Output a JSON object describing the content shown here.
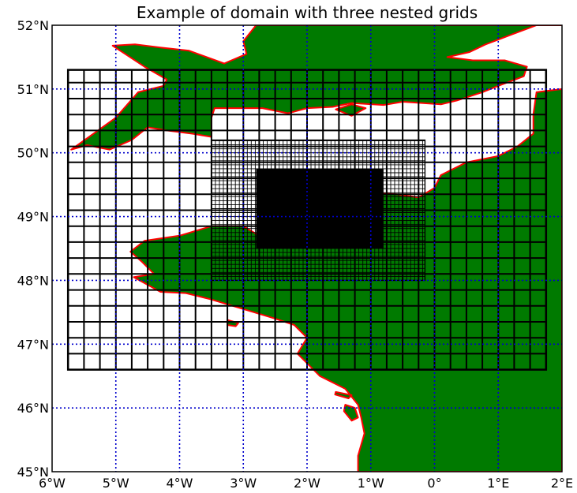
{
  "map": {
    "title": "Example of domain with three nested grids",
    "projection": "equirectangular",
    "extent": {
      "lon": [
        -6,
        2
      ],
      "lat": [
        45,
        52
      ]
    },
    "colors": {
      "land": "#007a00",
      "coastline": "#ff0000",
      "ocean": "#ffffff",
      "graticule": "#0000cc",
      "grid_lines": "#000000"
    },
    "graticule": {
      "lons": [
        -5,
        -4,
        -3,
        -2,
        -1,
        0,
        1
      ],
      "lats": [
        46,
        47,
        48,
        49,
        50,
        51
      ],
      "style": "dotted"
    },
    "lon_ticks": [
      {
        "value": -6,
        "label": "6°W"
      },
      {
        "value": -5,
        "label": "5°W"
      },
      {
        "value": -4,
        "label": "4°W"
      },
      {
        "value": -3,
        "label": "3°W"
      },
      {
        "value": -2,
        "label": "2°W"
      },
      {
        "value": -1,
        "label": "1°W"
      },
      {
        "value": 0,
        "label": "0°"
      },
      {
        "value": 1,
        "label": "1°E"
      },
      {
        "value": 2,
        "label": "2°E"
      }
    ],
    "lat_ticks": [
      {
        "value": 52,
        "label": "52°N"
      },
      {
        "value": 51,
        "label": "51°N"
      },
      {
        "value": 50,
        "label": "50°N"
      },
      {
        "value": 49,
        "label": "49°N"
      },
      {
        "value": 48,
        "label": "48°N"
      },
      {
        "value": 47,
        "label": "47°N"
      },
      {
        "value": 46,
        "label": "46°N"
      },
      {
        "value": 45,
        "label": "45°N"
      }
    ],
    "nested_grids": [
      {
        "name": "outer-grid",
        "lon": [
          -5.75,
          1.75
        ],
        "lat": [
          46.6,
          51.3
        ],
        "spacing": 0.25
      },
      {
        "name": "middle-grid",
        "lon": [
          -3.5,
          -0.15
        ],
        "lat": [
          48.0,
          50.2
        ],
        "spacing": 0.0625
      },
      {
        "name": "inner-grid",
        "lon": [
          -2.8,
          -0.8
        ],
        "lat": [
          48.5,
          49.75
        ],
        "spacing": 0.015
      }
    ],
    "landmasses": [
      {
        "name": "england",
        "coords": [
          [
            -5.7,
            50.05
          ],
          [
            -5.45,
            50.12
          ],
          [
            -5.1,
            50.05
          ],
          [
            -4.75,
            50.2
          ],
          [
            -4.5,
            50.4
          ],
          [
            -4.2,
            50.35
          ],
          [
            -3.8,
            50.3
          ],
          [
            -3.5,
            50.25
          ],
          [
            -3.5,
            50.55
          ],
          [
            -3.45,
            50.7
          ],
          [
            -3.1,
            50.7
          ],
          [
            -2.7,
            50.7
          ],
          [
            -2.3,
            50.62
          ],
          [
            -2.0,
            50.7
          ],
          [
            -1.6,
            50.72
          ],
          [
            -1.3,
            50.78
          ],
          [
            -0.8,
            50.75
          ],
          [
            -0.5,
            50.8
          ],
          [
            0.1,
            50.76
          ],
          [
            0.35,
            50.82
          ],
          [
            0.75,
            50.95
          ],
          [
            1.0,
            51.05
          ],
          [
            1.4,
            51.2
          ],
          [
            1.45,
            51.35
          ],
          [
            1.1,
            51.45
          ],
          [
            0.6,
            51.45
          ],
          [
            0.2,
            51.5
          ],
          [
            0.55,
            51.58
          ],
          [
            0.8,
            51.7
          ],
          [
            1.2,
            51.85
          ],
          [
            1.6,
            52.0
          ],
          [
            2.0,
            52.0
          ],
          [
            2.0,
            52.0
          ],
          [
            -2.8,
            52.0
          ],
          [
            -3.0,
            51.75
          ],
          [
            -2.95,
            51.55
          ],
          [
            -3.3,
            51.4
          ],
          [
            -3.85,
            51.6
          ],
          [
            -4.3,
            51.65
          ],
          [
            -4.7,
            51.7
          ],
          [
            -5.05,
            51.68
          ],
          [
            -4.55,
            51.35
          ],
          [
            -4.2,
            51.15
          ],
          [
            -4.25,
            51.05
          ],
          [
            -4.65,
            50.95
          ],
          [
            -5.0,
            50.55
          ],
          [
            -5.35,
            50.3
          ],
          [
            -5.7,
            50.05
          ]
        ]
      },
      {
        "name": "france",
        "coords": [
          [
            2.0,
            51.0
          ],
          [
            1.6,
            50.95
          ],
          [
            1.55,
            50.6
          ],
          [
            1.55,
            50.3
          ],
          [
            1.3,
            50.1
          ],
          [
            1.0,
            49.95
          ],
          [
            0.5,
            49.85
          ],
          [
            0.1,
            49.65
          ],
          [
            0.0,
            49.45
          ],
          [
            -0.25,
            49.3
          ],
          [
            -0.6,
            49.35
          ],
          [
            -1.1,
            49.38
          ],
          [
            -1.25,
            49.6
          ],
          [
            -1.3,
            49.7
          ],
          [
            -1.85,
            49.72
          ],
          [
            -1.6,
            49.4
          ],
          [
            -1.6,
            48.85
          ],
          [
            -1.4,
            48.65
          ],
          [
            -2.0,
            48.6
          ],
          [
            -2.5,
            48.55
          ],
          [
            -3.0,
            48.85
          ],
          [
            -3.5,
            48.85
          ],
          [
            -4.0,
            48.7
          ],
          [
            -4.55,
            48.62
          ],
          [
            -4.77,
            48.45
          ],
          [
            -4.6,
            48.3
          ],
          [
            -4.4,
            48.1
          ],
          [
            -4.72,
            48.05
          ],
          [
            -4.3,
            47.82
          ],
          [
            -3.9,
            47.8
          ],
          [
            -3.5,
            47.7
          ],
          [
            -3.0,
            47.55
          ],
          [
            -2.5,
            47.4
          ],
          [
            -2.2,
            47.3
          ],
          [
            -2.0,
            47.1
          ],
          [
            -2.15,
            46.85
          ],
          [
            -1.8,
            46.5
          ],
          [
            -1.4,
            46.3
          ],
          [
            -1.2,
            46.05
          ],
          [
            -1.15,
            45.85
          ],
          [
            -1.1,
            45.6
          ],
          [
            -1.2,
            45.25
          ],
          [
            -1.2,
            45.0
          ],
          [
            2.0,
            45.0
          ]
        ]
      },
      {
        "name": "isle-of-wight",
        "coords": [
          [
            -1.55,
            50.68
          ],
          [
            -1.3,
            50.76
          ],
          [
            -1.08,
            50.7
          ],
          [
            -1.3,
            50.58
          ]
        ]
      },
      {
        "name": "jersey",
        "coords": [
          [
            -2.25,
            49.25
          ],
          [
            -2.02,
            49.24
          ],
          [
            -2.05,
            49.17
          ],
          [
            -2.2,
            49.17
          ]
        ]
      },
      {
        "name": "guernsey",
        "coords": [
          [
            -2.68,
            49.5
          ],
          [
            -2.5,
            49.5
          ],
          [
            -2.55,
            49.43
          ],
          [
            -2.67,
            49.43
          ]
        ]
      },
      {
        "name": "belle-ile",
        "coords": [
          [
            -3.25,
            47.38
          ],
          [
            -3.08,
            47.33
          ],
          [
            -3.12,
            47.28
          ],
          [
            -3.25,
            47.3
          ]
        ]
      },
      {
        "name": "ile-de-re",
        "coords": [
          [
            -1.55,
            46.25
          ],
          [
            -1.3,
            46.2
          ],
          [
            -1.35,
            46.15
          ],
          [
            -1.56,
            46.21
          ]
        ]
      },
      {
        "name": "ile-d-oleron",
        "coords": [
          [
            -1.4,
            46.05
          ],
          [
            -1.25,
            46.0
          ],
          [
            -1.2,
            45.85
          ],
          [
            -1.3,
            45.8
          ],
          [
            -1.42,
            45.95
          ]
        ]
      }
    ]
  }
}
